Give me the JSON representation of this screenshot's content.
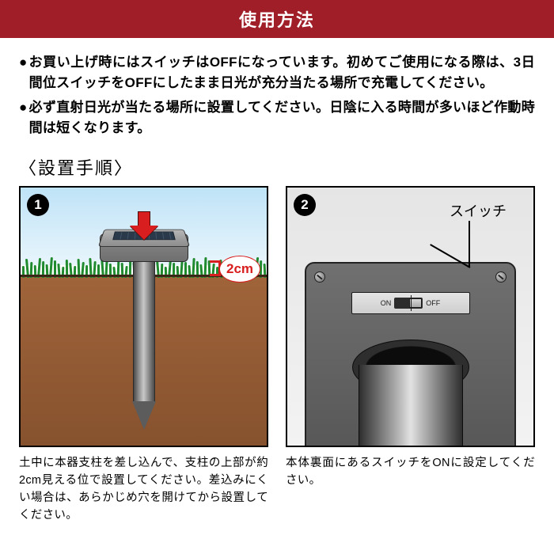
{
  "header": {
    "title": "使用方法"
  },
  "intro": {
    "items": [
      "お買い上げ時にはスイッチはOFFになっています。初めてご使用になる際は、3日間位スイッチをOFFにしたまま日光が充分当たる場所で充電してください。",
      "必ず直射日光が当たる場所に設置してください。日陰に入る時間が多いほど作動時間は短くなります。"
    ]
  },
  "section": {
    "title": "〈設置手順〉"
  },
  "panel1": {
    "step": "1",
    "dimension_label": "2cm",
    "caption": "土中に本器支柱を差し込んで、支柱の上部が約2cm見える位で設置してください。差込みにくい場合は、あらかじめ穴を開けてから設置してください。",
    "colors": {
      "sky_top": "#bfe3f7",
      "sky_bottom": "#e8f5fc",
      "grass": "#1f8a2e",
      "ground_top": "#a0643a",
      "ground_bottom": "#86522e",
      "arrow": "#d81e1e"
    }
  },
  "panel2": {
    "step": "2",
    "callout": "スイッチ",
    "switch_on": "ON",
    "switch_off": "OFF",
    "caption": "本体裏面にあるスイッチをONに設定してください。",
    "colors": {
      "body_top": "#707070",
      "body_bottom": "#555555",
      "bg": "#e5e5e5"
    }
  },
  "style": {
    "header_bg": "#a01e28",
    "header_fg": "#ffffff",
    "text_color": "#000000",
    "accent_red": "#d81e1e"
  }
}
